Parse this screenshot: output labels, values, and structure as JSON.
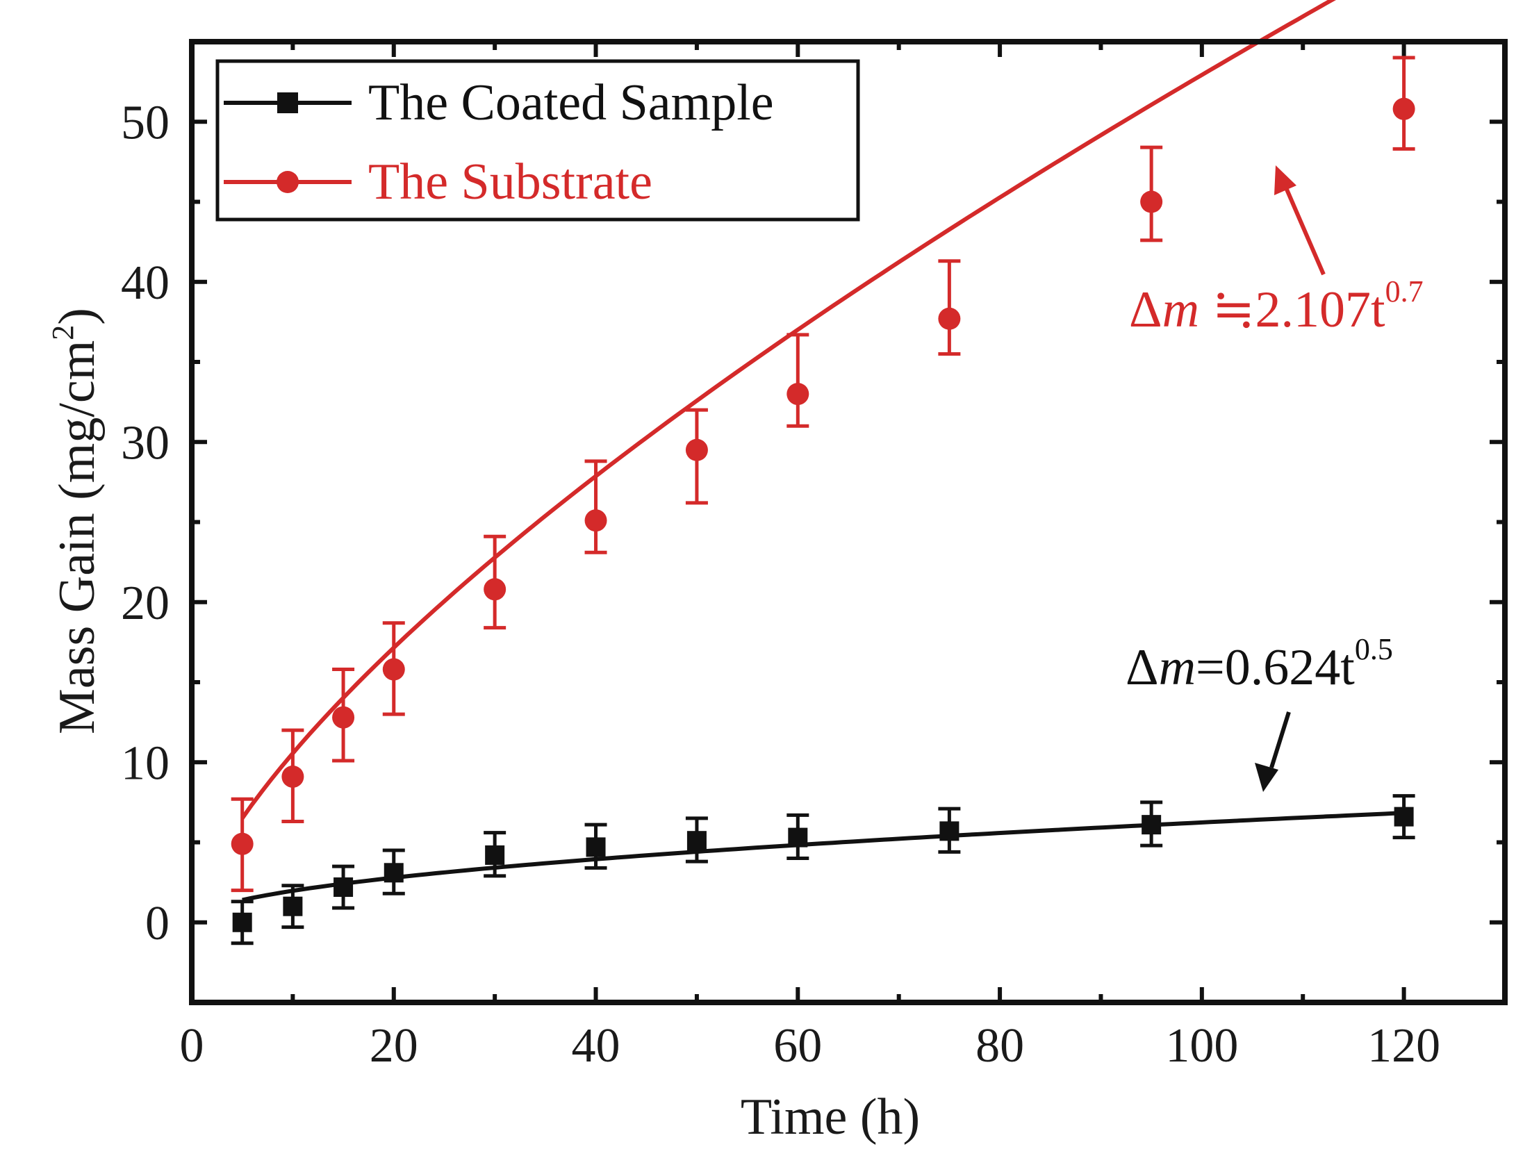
{
  "chart_data": {
    "type": "line",
    "xlabel": "Time (h)",
    "ylabel_main": "Mass Gain (mg/cm",
    "ylabel_sup": "2",
    "ylabel_close": ")",
    "xlim": [
      0,
      130
    ],
    "ylim": [
      -5,
      55
    ],
    "x_ticks": [
      "0",
      "20",
      "40",
      "60",
      "80",
      "100",
      "120"
    ],
    "y_ticks": [
      "0",
      "10",
      "20",
      "30",
      "40",
      "50"
    ],
    "legend_position": "top-left",
    "series": [
      {
        "name": "The Coated Sample",
        "color": "#111111",
        "marker": "square",
        "x": [
          5,
          10,
          15,
          20,
          30,
          40,
          50,
          60,
          75,
          95,
          120
        ],
        "y": [
          0,
          1,
          2.2,
          3.1,
          4.2,
          4.7,
          5.1,
          5.3,
          5.7,
          6.1,
          6.6
        ],
        "err_plus": [
          1.3,
          1.3,
          1.3,
          1.4,
          1.4,
          1.4,
          1.4,
          1.4,
          1.4,
          1.4,
          1.3
        ],
        "err_minus": [
          1.3,
          1.3,
          1.3,
          1.3,
          1.3,
          1.3,
          1.3,
          1.3,
          1.3,
          1.3,
          1.3
        ],
        "fit": {
          "coefficient": 0.624,
          "exponent": 0.5,
          "x_start": 5,
          "x_end": 120
        }
      },
      {
        "name": "The Substrate",
        "color": "#d42a2a",
        "marker": "circle",
        "x": [
          5,
          10,
          15,
          20,
          30,
          40,
          50,
          60,
          75,
          95,
          120
        ],
        "y": [
          4.9,
          9.1,
          12.8,
          15.8,
          20.8,
          25.1,
          29.5,
          33.0,
          37.7,
          45.0,
          50.8
        ],
        "err_plus": [
          2.8,
          2.9,
          3.0,
          2.9,
          3.3,
          3.7,
          2.5,
          3.7,
          3.6,
          3.4,
          3.2
        ],
        "err_minus": [
          2.9,
          2.8,
          2.7,
          2.8,
          2.4,
          2.0,
          3.3,
          2.0,
          2.2,
          2.4,
          2.5
        ],
        "fit": {
          "coefficient": 2.107,
          "exponent": 0.7,
          "x_start": 5,
          "x_end": 120
        }
      }
    ],
    "annotations": [
      {
        "series": 0,
        "delta": "Δ",
        "m": "m",
        "eq": "=0.624t",
        "sup": "0.5"
      },
      {
        "series": 1,
        "delta": "Δ",
        "m": "m",
        "eq": " ≒2.107t",
        "sup": "0.7"
      }
    ]
  }
}
